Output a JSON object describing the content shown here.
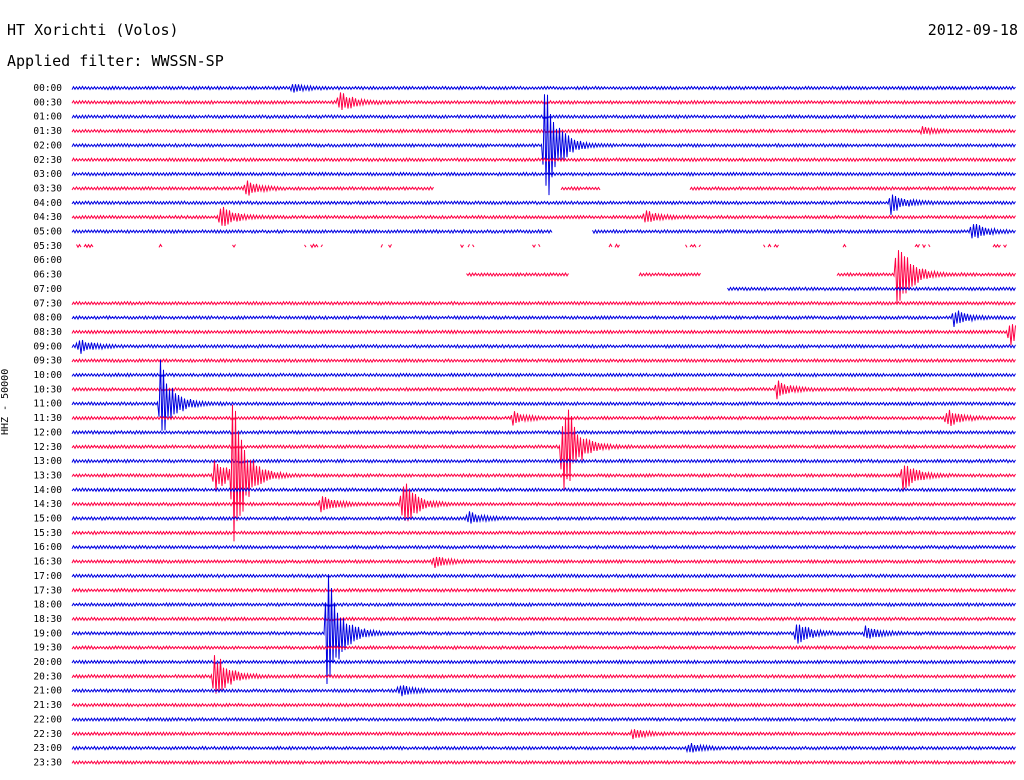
{
  "header": {
    "station": "HT Xorichti (Volos)",
    "date": "2012-09-18",
    "filter": "Applied filter: WWSSN-SP"
  },
  "chart_data": {
    "type": "line",
    "title": "HT Xorichti (Volos)",
    "ylabel": "HHZ - 50000",
    "colors": {
      "even_rows": "#0000e0",
      "odd_rows": "#ff0044"
    },
    "rows": [
      "00:00",
      "00:30",
      "01:00",
      "01:30",
      "02:00",
      "02:30",
      "03:00",
      "03:30",
      "04:00",
      "04:30",
      "05:00",
      "05:30",
      "06:00",
      "06:30",
      "07:00",
      "07:30",
      "08:00",
      "08:30",
      "09:00",
      "09:30",
      "10:00",
      "10:30",
      "11:00",
      "11:30",
      "12:00",
      "12:30",
      "13:00",
      "13:30",
      "14:00",
      "14:30",
      "15:00",
      "15:30",
      "16:00",
      "16:30",
      "17:00",
      "17:30",
      "18:00",
      "18:30",
      "19:00",
      "19:30",
      "20:00",
      "20:30",
      "21:00",
      "21:30",
      "22:00",
      "22:30",
      "23:00",
      "23:30"
    ],
    "row_minutes": 30,
    "x_range_minutes": [
      0,
      30
    ],
    "events": [
      {
        "row": "00:00",
        "minute": 7.0,
        "amplitude": 4
      },
      {
        "row": "00:30",
        "minute": 8.5,
        "amplitude": 12
      },
      {
        "row": "01:30",
        "minute": 27.0,
        "amplitude": 4
      },
      {
        "row": "02:00",
        "minute": 15.0,
        "amplitude": 75
      },
      {
        "row": "03:30",
        "minute": 5.5,
        "amplitude": 8
      },
      {
        "row": "04:00",
        "minute": 26.0,
        "amplitude": 12
      },
      {
        "row": "04:30",
        "minute": 4.7,
        "amplitude": 14
      },
      {
        "row": "04:30",
        "minute": 18.2,
        "amplitude": 7
      },
      {
        "row": "05:00",
        "minute": 28.6,
        "amplitude": 10
      },
      {
        "row": "06:30",
        "minute": 26.2,
        "amplitude": 45
      },
      {
        "row": "08:00",
        "minute": 28.0,
        "amplitude": 9
      },
      {
        "row": "08:30",
        "minute": 29.8,
        "amplitude": 14
      },
      {
        "row": "09:00",
        "minute": 0.2,
        "amplitude": 8
      },
      {
        "row": "10:30",
        "minute": 22.4,
        "amplitude": 9
      },
      {
        "row": "11:00",
        "minute": 2.8,
        "amplitude": 45
      },
      {
        "row": "11:30",
        "minute": 14.0,
        "amplitude": 7
      },
      {
        "row": "11:30",
        "minute": 27.8,
        "amplitude": 10
      },
      {
        "row": "12:30",
        "minute": 15.6,
        "amplitude": 60
      },
      {
        "row": "13:30",
        "minute": 5.1,
        "amplitude": 85
      },
      {
        "row": "13:30",
        "minute": 4.5,
        "amplitude": 20
      },
      {
        "row": "13:30",
        "minute": 26.4,
        "amplitude": 18
      },
      {
        "row": "14:30",
        "minute": 7.9,
        "amplitude": 10
      },
      {
        "row": "14:30",
        "minute": 10.5,
        "amplitude": 28
      },
      {
        "row": "15:00",
        "minute": 12.6,
        "amplitude": 7
      },
      {
        "row": "16:30",
        "minute": 11.5,
        "amplitude": 6
      },
      {
        "row": "19:00",
        "minute": 8.1,
        "amplitude": 75
      },
      {
        "row": "19:00",
        "minute": 23.0,
        "amplitude": 14
      },
      {
        "row": "19:00",
        "minute": 25.2,
        "amplitude": 8
      },
      {
        "row": "20:30",
        "minute": 4.5,
        "amplitude": 30
      },
      {
        "row": "21:00",
        "minute": 10.4,
        "amplitude": 6
      },
      {
        "row": "22:30",
        "minute": 17.8,
        "amplitude": 5
      },
      {
        "row": "23:00",
        "minute": 19.6,
        "amplitude": 5
      }
    ],
    "gaps": [
      {
        "row": "03:30",
        "from": 11.5,
        "to": 15.5
      },
      {
        "row": "03:30",
        "from": 16.8,
        "to": 19.6
      },
      {
        "row": "05:00",
        "from": 15.3,
        "to": 16.5
      },
      {
        "row": "05:30",
        "from": 0.0,
        "to": 30.0,
        "dashed": true
      },
      {
        "row": "06:00",
        "from": 0.0,
        "to": 30.0
      },
      {
        "row": "06:30",
        "from": 0.0,
        "to": 12.5
      },
      {
        "row": "06:30",
        "from": 15.8,
        "to": 18.0
      },
      {
        "row": "06:30",
        "from": 20.0,
        "to": 24.3
      },
      {
        "row": "07:00",
        "from": 0.0,
        "to": 20.8
      }
    ]
  }
}
